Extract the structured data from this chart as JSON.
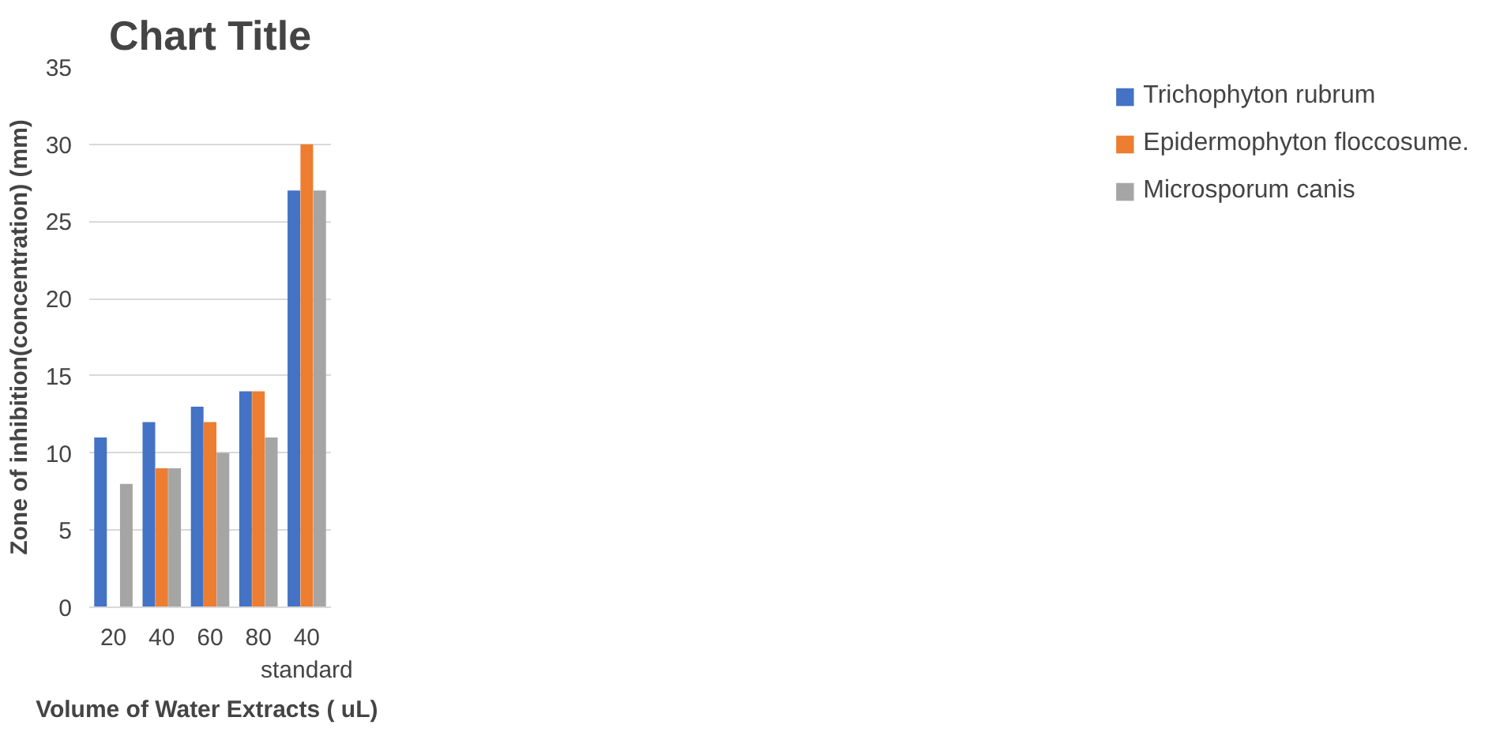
{
  "chart_data": {
    "type": "bar",
    "title": "Chart Title",
    "xlabel": "Volume of  Water Extracts ( uL)",
    "ylabel": "Zone of inhibition(concentration) (mm)",
    "categories": [
      "20",
      "40",
      "60",
      "80",
      "40\nstandard"
    ],
    "series": [
      {
        "name": "Trichophyton rubrum",
        "color": "#4472c4",
        "values": [
          11,
          12,
          13,
          14,
          27
        ]
      },
      {
        "name": "Epidermophyton floccosume.",
        "color": "#ed7d31",
        "values": [
          0,
          9,
          12,
          14,
          30
        ]
      },
      {
        "name": "Microsporum canis",
        "color": "#a5a5a5",
        "values": [
          8,
          9,
          10,
          11,
          27
        ]
      }
    ],
    "ylim": [
      0,
      35
    ],
    "yticks": [
      0,
      5,
      10,
      15,
      20,
      25,
      30,
      35
    ],
    "grid": "y",
    "legend": "right"
  }
}
